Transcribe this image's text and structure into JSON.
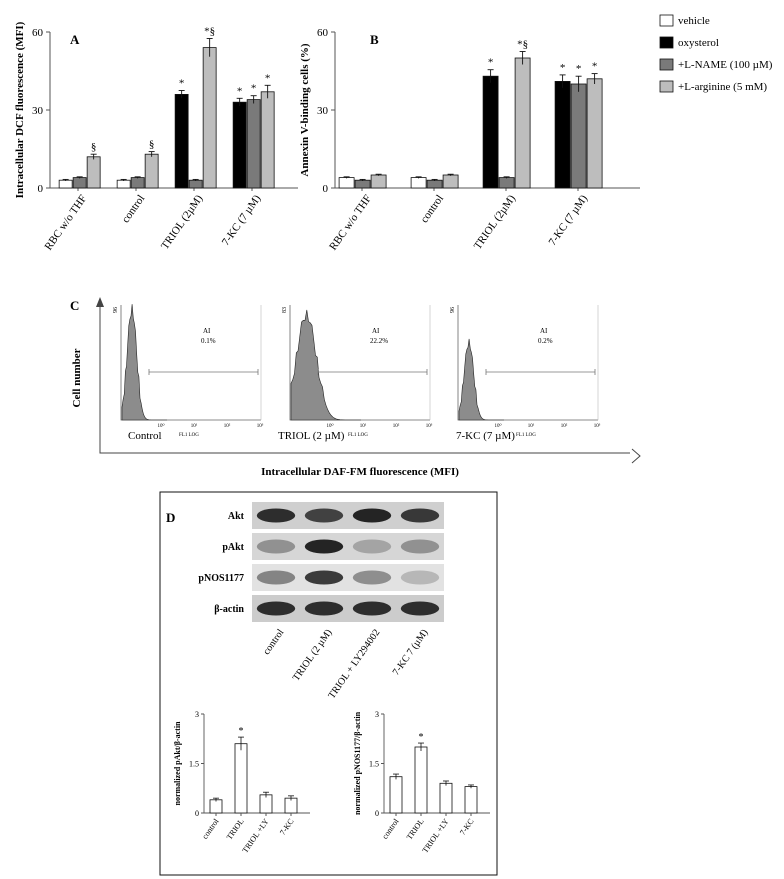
{
  "panels": {
    "a": "A",
    "b": "B",
    "c": "C",
    "d": "D"
  },
  "colors": {
    "vehicle": "#ffffff",
    "oxysterol": "#000000",
    "lname": "#7a7a7a",
    "larginine": "#bdbdbd",
    "histogram": "#8c8c8c"
  },
  "legend": [
    "vehicle",
    "oxysterol",
    "+L-NAME (100 µM)",
    "+L-arginine (5 mM)"
  ],
  "chart_data": [
    {
      "id": "A",
      "type": "bar",
      "ylabel": "Intracellular DCF fluorescence (MFI)",
      "ylim": [
        0,
        60
      ],
      "yticks": [
        0,
        30,
        60
      ],
      "categories": [
        "RBC w/o THF",
        "control",
        "TRIOL (2µM)",
        "7-KC (7 µM)"
      ],
      "series": [
        {
          "name": "vehicle",
          "values": [
            3,
            3,
            null,
            null
          ],
          "errors": [
            0.3,
            0.3,
            null,
            null
          ],
          "annot": [
            "",
            "",
            "",
            ""
          ]
        },
        {
          "name": "oxysterol",
          "values": [
            null,
            null,
            36,
            33
          ],
          "errors": [
            null,
            null,
            1.5,
            1.5
          ],
          "annot": [
            "",
            "",
            "*",
            "*"
          ]
        },
        {
          "name": "+L-NAME (100 µM)",
          "values": [
            4,
            4,
            3,
            34
          ],
          "errors": [
            0.3,
            0.3,
            0.3,
            1.5
          ],
          "annot": [
            "",
            "",
            "",
            "*"
          ]
        },
        {
          "name": "+L-arginine (5 mM)",
          "values": [
            12,
            13,
            54,
            37
          ],
          "errors": [
            1,
            1,
            3.5,
            2.5
          ],
          "annot": [
            "§",
            "§",
            "*§",
            "*"
          ]
        }
      ]
    },
    {
      "id": "B",
      "type": "bar",
      "ylabel": "Annexin V-binding cells (%)",
      "ylim": [
        0,
        60
      ],
      "yticks": [
        0,
        30,
        60
      ],
      "categories": [
        "RBC w/o THF",
        "control",
        "TRIOL (2µM)",
        "7-KC (7 µM)"
      ],
      "series": [
        {
          "name": "vehicle",
          "values": [
            4,
            4,
            null,
            null
          ],
          "errors": [
            0.3,
            0.3,
            null,
            null
          ],
          "annot": [
            "",
            "",
            "",
            ""
          ]
        },
        {
          "name": "oxysterol",
          "values": [
            null,
            null,
            43,
            41
          ],
          "errors": [
            null,
            null,
            2.5,
            2.5
          ],
          "annot": [
            "",
            "",
            "*",
            "*"
          ]
        },
        {
          "name": "+L-NAME (100 µM)",
          "values": [
            3,
            3,
            4,
            40
          ],
          "errors": [
            0.3,
            0.3,
            0.3,
            3
          ],
          "annot": [
            "",
            "",
            "",
            "*"
          ]
        },
        {
          "name": "+L-arginine (5 mM)",
          "values": [
            5,
            5,
            50,
            42
          ],
          "errors": [
            0.3,
            0.3,
            2.5,
            2
          ],
          "annot": [
            "",
            "",
            "*§",
            "*"
          ]
        }
      ]
    },
    {
      "id": "D-pAkt",
      "type": "bar",
      "ylabel": "normalized pAkt/β-actin",
      "ylim": [
        0,
        3
      ],
      "yticks": [
        "0",
        "1.5",
        "3"
      ],
      "categories": [
        "control",
        "TRIOL",
        "TRIOL +LY",
        "7-KC"
      ],
      "values": [
        0.4,
        2.1,
        0.55,
        0.45
      ],
      "errors": [
        0.05,
        0.2,
        0.08,
        0.07
      ],
      "annot": [
        "",
        "*",
        "",
        ""
      ]
    },
    {
      "id": "D-pNOS",
      "type": "bar",
      "ylabel": "normalized pNOS1177/β-actin",
      "ylim": [
        0,
        3
      ],
      "yticks": [
        "0",
        "1.5",
        "3"
      ],
      "categories": [
        "control",
        "TRIOL",
        "TRIOL +LY",
        "7-KC"
      ],
      "values": [
        1.1,
        2.0,
        0.9,
        0.8
      ],
      "errors": [
        0.08,
        0.12,
        0.07,
        0.05
      ],
      "annot": [
        "",
        "*",
        "",
        ""
      ]
    }
  ],
  "flow": {
    "xlabel": "Intracellular DAF-FM fluorescence (MFI)",
    "ylabel": "Cell number",
    "axis_label": "FL1 LOG",
    "ai_label": "AI",
    "plots": [
      {
        "name": "Control",
        "percent": "0.1%",
        "ymax": "96"
      },
      {
        "name": "TRIOL (2 µM)",
        "percent": "22.2%",
        "ymax": "83"
      },
      {
        "name": "7-KC (7 µM)",
        "percent": "0.2%",
        "ymax": "96"
      }
    ],
    "xticks": [
      "10⁰",
      "10¹",
      "10²",
      "10³"
    ]
  },
  "blot": {
    "rows": [
      "Akt",
      "pAkt",
      "pNOS1177",
      "β-actin"
    ],
    "lanes": [
      "control",
      "TRIOL (2 µM)",
      "TRIOL + LY294002",
      "7-KC 7 (µM)"
    ]
  }
}
